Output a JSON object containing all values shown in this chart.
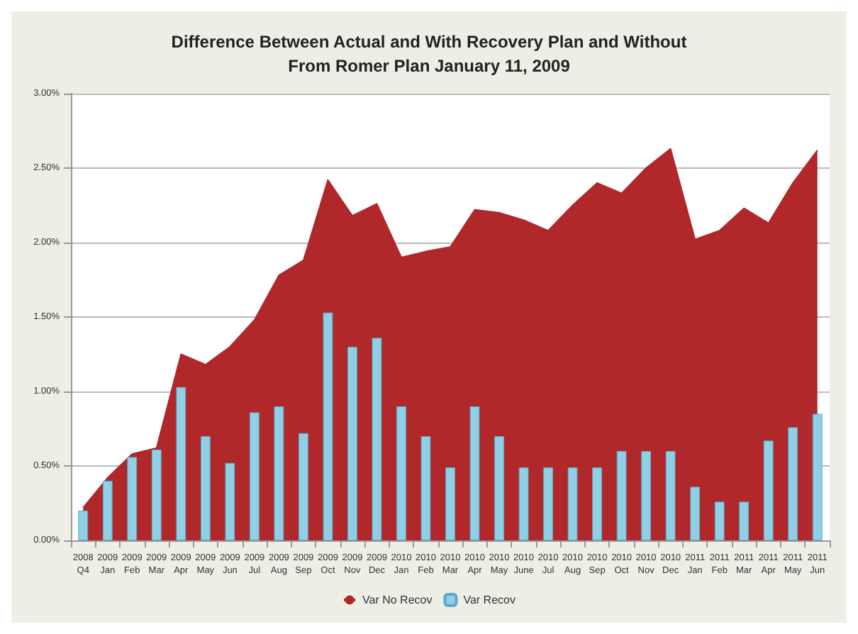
{
  "chart_data": {
    "type": "bar",
    "title": "Difference Between Actual and With Recovery Plan and Without\nFrom Romer Plan January 11, 2009",
    "categories": [
      "2008\nQ4",
      "2009\nJan",
      "2009\nFeb",
      "2009\nMar",
      "2009\nApr",
      "2009\nMay",
      "2009\nJun",
      "2009\nJul",
      "2009\nAug",
      "2009\nSep",
      "2009\nOct",
      "2009\nNov",
      "2009\nDec",
      "2010\nJan",
      "2010\nFeb",
      "2010\nMar",
      "2010\nApr",
      "2010\nMay",
      "2010\nJune",
      "2010\nJul",
      "2010\nAug",
      "2010\nSep",
      "2010\nOct",
      "2010\nNov",
      "2010\nDec",
      "2011\nJan",
      "2011\nFeb",
      "2011\nMar",
      "2011\nApr",
      "2011\nMay",
      "2011\nJun"
    ],
    "series": [
      {
        "name": "Var No Recov",
        "type": "area",
        "color": "#b0282a",
        "values": [
          0.22,
          0.42,
          0.58,
          0.62,
          1.25,
          1.18,
          1.3,
          1.48,
          1.78,
          1.88,
          2.42,
          2.18,
          2.26,
          1.9,
          1.94,
          1.97,
          2.22,
          2.2,
          2.15,
          2.08,
          2.25,
          2.4,
          2.33,
          2.5,
          2.63,
          2.02,
          2.08,
          2.23,
          2.13,
          2.4,
          2.62
        ]
      },
      {
        "name": "Var Recov",
        "type": "bar",
        "color": "#8fd0e6",
        "values": [
          0.2,
          0.4,
          0.56,
          0.61,
          1.03,
          0.7,
          0.52,
          0.86,
          0.9,
          0.72,
          1.53,
          1.3,
          1.36,
          0.9,
          0.7,
          0.49,
          0.9,
          0.7,
          0.49,
          0.49,
          0.49,
          0.49,
          0.6,
          0.6,
          0.6,
          0.36,
          0.26,
          0.26,
          0.67,
          0.76,
          0.85
        ]
      }
    ],
    "ylim": [
      0,
      3
    ],
    "yticks": [
      {
        "value": 0,
        "label": "0.00%"
      },
      {
        "value": 0.5,
        "label": "0.50%"
      },
      {
        "value": 1,
        "label": "1.00%"
      },
      {
        "value": 1.5,
        "label": "1.50%"
      },
      {
        "value": 2,
        "label": "2.00%"
      },
      {
        "value": 2.5,
        "label": "2.50%"
      },
      {
        "value": 3,
        "label": "3.00%"
      }
    ],
    "grid": "y",
    "legend": "bottom",
    "marker": "none"
  }
}
